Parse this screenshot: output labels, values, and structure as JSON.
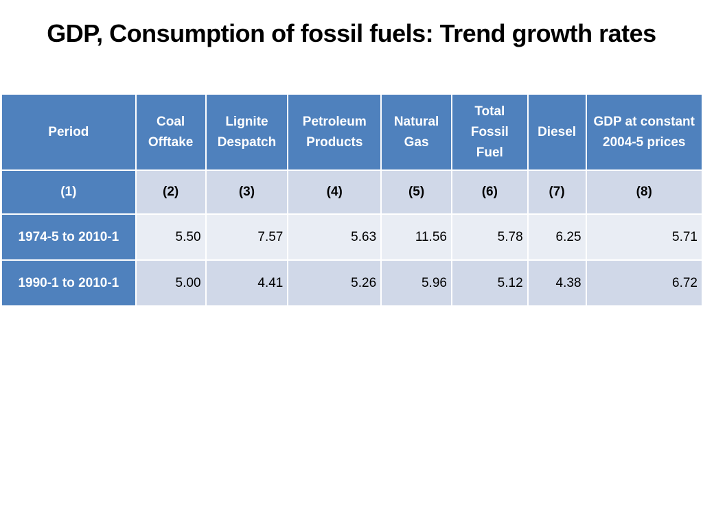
{
  "title": "GDP, Consumption of fossil fuels: Trend growth rates",
  "colors": {
    "header_bg": "#4f81bd",
    "row_dark": "#d0d8e8",
    "row_light": "#e9edf4",
    "header_text": "#ffffff"
  },
  "table": {
    "headers": [
      "Period",
      "Coal Offtake",
      "Lignite Despatch",
      "Petroleum Products",
      "Natural Gas",
      "Total Fossil Fuel",
      "Diesel",
      "GDP at constant 2004-5 prices"
    ],
    "column_numbers": [
      "(1)",
      "(2)",
      "(3)",
      "(4)",
      "(5)",
      "(6)",
      "(7)",
      "(8)"
    ],
    "rows": [
      [
        "1974-5 to 2010-1",
        "5.50",
        "7.57",
        "5.63",
        "11.56",
        "5.78",
        "6.25",
        "5.71"
      ],
      [
        "1990-1 to 2010-1",
        "5.00",
        "4.41",
        "5.26",
        "5.96",
        "5.12",
        "4.38",
        "6.72"
      ]
    ]
  }
}
